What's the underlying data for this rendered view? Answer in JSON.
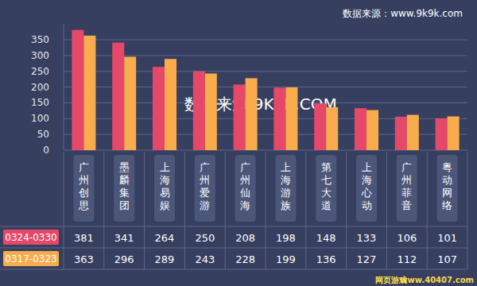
{
  "chart_data": {
    "type": "bar",
    "source": "数据来源：www.9k9k.com",
    "annotations": [
      "数据来源 9K9K.COM",
      "网页游戏",
      "www.40407.com"
    ],
    "categories": [
      "广州创思",
      "墨麟集团",
      "上海易娱",
      "广州爱游",
      "广州仙海",
      "上海游族",
      "第七大道",
      "上海心动",
      "广州菲音",
      "粤动网络"
    ],
    "series": [
      {
        "name": "0324-0330",
        "color": "#e6486a",
        "values": [
          381,
          341,
          264,
          250,
          208,
          198,
          148,
          133,
          106,
          101
        ]
      },
      {
        "name": "0317-0323",
        "color": "#f8ac4c",
        "values": [
          363,
          296,
          289,
          243,
          228,
          199,
          136,
          127,
          112,
          107
        ]
      }
    ],
    "ylim": [
      0,
      400
    ],
    "yticks": [
      0,
      50,
      100,
      150,
      200,
      250,
      300,
      350
    ],
    "grid": true,
    "legend": "bottom"
  }
}
